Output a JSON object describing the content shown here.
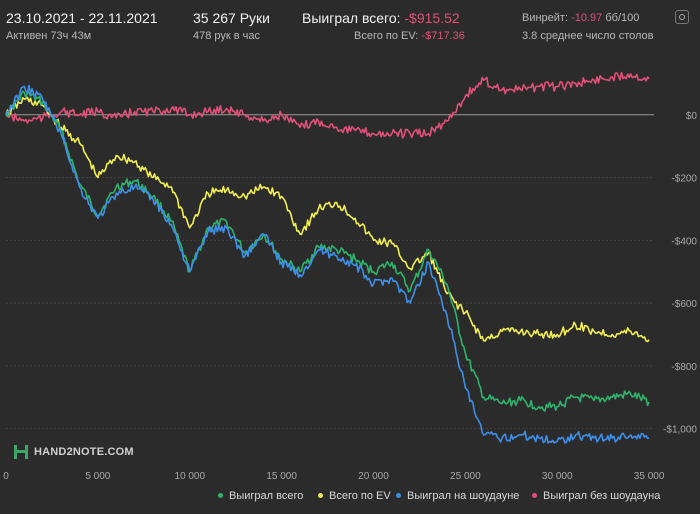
{
  "header": {
    "date_range": "23.10.2021 - 22.11.2021",
    "active_time": "Активен 73ч 43м",
    "hands": "35 267 Руки",
    "hands_per_hour": "478 рук в час",
    "won_total_label": "Выиграл всего:",
    "won_total_value": "-$915.52",
    "ev_total_label": "Всего по EV:",
    "ev_total_value": "-$717.36",
    "winrate_label": "Винрейт:",
    "winrate_value": "-10.97",
    "winrate_unit": "бб/100",
    "avg_tables": "3.8 среднее число столов"
  },
  "logo": {
    "text": "HAND2NOTE.COM"
  },
  "colors": {
    "background": "#2b2b2b",
    "won_total": "#2db36b",
    "ev": "#f2ef4e",
    "showdown": "#3d8fe8",
    "non_showdown": "#e0507a",
    "negative_text": "#e0507a"
  },
  "chart_data": {
    "type": "line",
    "title": "",
    "xlabel": "",
    "ylabel": "",
    "xlim": [
      0,
      35267
    ],
    "ylim": [
      -1100,
      200
    ],
    "x_ticks": [
      {
        "value": 0,
        "label": "0"
      },
      {
        "value": 5000,
        "label": "5 000"
      },
      {
        "value": 10000,
        "label": "10 000"
      },
      {
        "value": 15000,
        "label": "15 000"
      },
      {
        "value": 20000,
        "label": "20 000"
      },
      {
        "value": 25000,
        "label": "25 000"
      },
      {
        "value": 30000,
        "label": "30 000"
      },
      {
        "value": 35000,
        "label": "35 000"
      }
    ],
    "y_ticks": [
      {
        "value": 0,
        "label": "$0"
      },
      {
        "value": -200,
        "label": "-$200"
      },
      {
        "value": -400,
        "label": "-$400"
      },
      {
        "value": -600,
        "label": "-$600"
      },
      {
        "value": -800,
        "label": "-$800"
      },
      {
        "value": -1000,
        "label": "-$1,000"
      }
    ],
    "grid": true,
    "legend_position": "bottom-right",
    "x": [
      0,
      1000,
      2000,
      3000,
      4000,
      5000,
      6000,
      7000,
      8000,
      9000,
      10000,
      11000,
      12000,
      13000,
      14000,
      15000,
      16000,
      17000,
      18000,
      19000,
      20000,
      21000,
      22000,
      23000,
      24000,
      25000,
      26000,
      27000,
      28000,
      29000,
      30000,
      31000,
      32000,
      33000,
      34000,
      35000
    ],
    "series": [
      {
        "name": "Выиграл всего",
        "color": "#2db36b",
        "values": [
          0,
          70,
          40,
          -50,
          -220,
          -320,
          -230,
          -210,
          -260,
          -340,
          -500,
          -360,
          -340,
          -440,
          -380,
          -460,
          -500,
          -420,
          -430,
          -460,
          -500,
          -470,
          -560,
          -430,
          -540,
          -760,
          -900,
          -920,
          -910,
          -930,
          -930,
          -900,
          -910,
          -900,
          -890,
          -915
        ]
      },
      {
        "name": "Всего по EV",
        "color": "#f2ef4e",
        "values": [
          0,
          50,
          30,
          -40,
          -90,
          -200,
          -130,
          -150,
          -200,
          -230,
          -360,
          -250,
          -240,
          -260,
          -230,
          -260,
          -380,
          -300,
          -280,
          -330,
          -400,
          -410,
          -490,
          -440,
          -570,
          -630,
          -720,
          -690,
          -690,
          -700,
          -700,
          -670,
          -690,
          -700,
          -690,
          -717
        ]
      },
      {
        "name": "Выиграл на шоудауне",
        "color": "#3d8fe8",
        "values": [
          0,
          90,
          50,
          -60,
          -230,
          -330,
          -250,
          -230,
          -270,
          -350,
          -500,
          -370,
          -360,
          -450,
          -380,
          -470,
          -510,
          -430,
          -450,
          -480,
          -540,
          -520,
          -600,
          -470,
          -640,
          -870,
          -1020,
          -1030,
          -1020,
          -1030,
          -1040,
          -1020,
          -1030,
          -1030,
          -1020,
          -1030
        ]
      },
      {
        "name": "Выиграл без шоудауна",
        "color": "#e0507a",
        "values": [
          0,
          -20,
          -10,
          10,
          0,
          10,
          -10,
          10,
          10,
          20,
          0,
          10,
          20,
          0,
          -20,
          0,
          -40,
          -20,
          -40,
          -50,
          -60,
          -60,
          -60,
          -60,
          -20,
          60,
          110,
          80,
          80,
          90,
          90,
          100,
          110,
          120,
          130,
          115
        ]
      }
    ]
  }
}
